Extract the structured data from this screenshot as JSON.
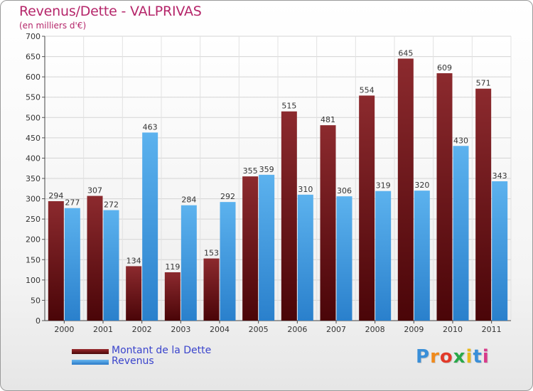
{
  "header": {
    "title": "Revenus/Dette - VALPRIVAS",
    "subtitle": "(en milliers d'€)"
  },
  "chart_data": {
    "type": "bar",
    "categories": [
      "2000",
      "2001",
      "2002",
      "2003",
      "2004",
      "2005",
      "2006",
      "2007",
      "2008",
      "2009",
      "2010",
      "2011"
    ],
    "series": [
      {
        "name": "Montant de la Dette",
        "color": "#7a1c20",
        "values": [
          294,
          307,
          134,
          119,
          153,
          355,
          515,
          481,
          554,
          645,
          609,
          571
        ]
      },
      {
        "name": "Revenus",
        "color": "#3d9be0",
        "values": [
          277,
          272,
          463,
          284,
          292,
          359,
          310,
          306,
          319,
          320,
          430,
          343
        ]
      }
    ],
    "ylim": [
      0,
      700
    ],
    "yticks": [
      0,
      50,
      100,
      150,
      200,
      250,
      300,
      350,
      400,
      450,
      500,
      550,
      600,
      650,
      700
    ],
    "grid": true,
    "legend_position": "bottom-left"
  },
  "logo": {
    "letters": [
      "P",
      "r",
      "o",
      "x",
      "i",
      "t",
      "i"
    ],
    "colors": [
      "#3a8fd8",
      "#f08a1c",
      "#e23a2a",
      "#2aa84a",
      "#e8b81a",
      "#3a8fd8",
      "#d83a8a"
    ]
  }
}
